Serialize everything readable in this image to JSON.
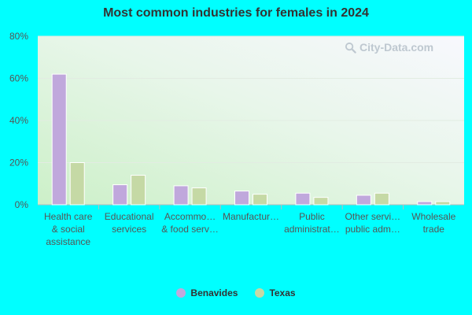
{
  "chart_data": {
    "type": "bar",
    "title": "Most common industries for females in 2024",
    "ylim": [
      0,
      80
    ],
    "yticks": [
      "0%",
      "20%",
      "40%",
      "60%",
      "80%"
    ],
    "categories": [
      [
        "Health care",
        "& social",
        "assistance"
      ],
      [
        "Educational",
        "services"
      ],
      [
        "Accommo…",
        "& food serv…"
      ],
      [
        "Manufactur…"
      ],
      [
        "Public",
        "administrat…"
      ],
      [
        "Other servi…",
        "public adm…"
      ],
      [
        "Wholesale",
        "trade"
      ]
    ],
    "series": [
      {
        "name": "Benavides",
        "color": "#c0a8dc",
        "values": [
          62,
          9.5,
          9,
          6.5,
          5.5,
          4.5,
          1.5
        ]
      },
      {
        "name": "Texas",
        "color": "#c5d9a5",
        "values": [
          20,
          14,
          8,
          5,
          3.5,
          5.5,
          1.5
        ]
      }
    ],
    "grid": true,
    "legend_placement": "bottom"
  },
  "watermark": {
    "text": "City-Data.com",
    "icon": "search-icon"
  }
}
